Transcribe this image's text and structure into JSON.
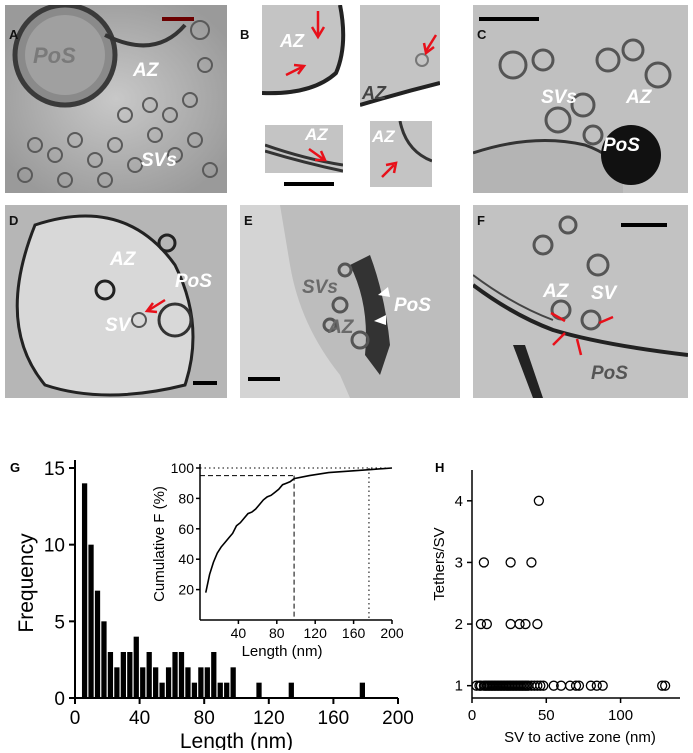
{
  "panels": {
    "A": {
      "letter": "A",
      "labels": {
        "pos": "PoS",
        "az": "AZ",
        "svs": "SVs"
      }
    },
    "B": {
      "letter": "B",
      "labels": {
        "az1": "AZ",
        "az2": "AZ",
        "az3": "AZ",
        "az4": "AZ"
      }
    },
    "C": {
      "letter": "C",
      "labels": {
        "svs": "SVs",
        "az": "AZ",
        "pos": "PoS"
      }
    },
    "D": {
      "letter": "D",
      "labels": {
        "az": "AZ",
        "pos": "PoS",
        "sv": "SV"
      }
    },
    "E": {
      "letter": "E",
      "labels": {
        "svs": "SVs",
        "az": "AZ",
        "pos": "PoS"
      }
    },
    "F": {
      "letter": "F",
      "labels": {
        "az": "AZ",
        "sv": "SV",
        "pos": "PoS"
      }
    },
    "G": {
      "letter": "G"
    },
    "H": {
      "letter": "H"
    }
  },
  "colors": {
    "arrow": "#e8101a",
    "arrowhead_white": "#ffffff",
    "scalebar_red": "#6b0000"
  },
  "chart_data": [
    {
      "id": "G-main",
      "type": "bar",
      "xlabel": "Length (nm)",
      "ylabel": "Frequency",
      "xlim": [
        0,
        200
      ],
      "ylim": [
        0,
        15
      ],
      "xticks": [
        0,
        40,
        80,
        120,
        160,
        200
      ],
      "yticks": [
        0,
        5,
        10,
        15
      ],
      "bin_width": 4,
      "bin_centers": [
        6,
        10,
        14,
        18,
        22,
        26,
        30,
        34,
        38,
        42,
        46,
        50,
        54,
        58,
        62,
        66,
        70,
        74,
        78,
        82,
        86,
        90,
        94,
        98,
        114,
        134,
        178
      ],
      "values": [
        14,
        10,
        7,
        5,
        3,
        2,
        3,
        3,
        4,
        2,
        3,
        2,
        1,
        2,
        3,
        3,
        2,
        1,
        2,
        2,
        3,
        1,
        1,
        2,
        1,
        1,
        1
      ]
    },
    {
      "id": "G-inset",
      "type": "line",
      "xlabel": "Length (nm)",
      "ylabel": "Cumulative F (%)",
      "xlim": [
        0,
        200
      ],
      "ylim": [
        0,
        100
      ],
      "xticks": [
        40,
        80,
        120,
        160,
        200
      ],
      "yticks": [
        20,
        40,
        60,
        80,
        100
      ],
      "x": [
        6,
        10,
        14,
        18,
        22,
        26,
        30,
        34,
        38,
        42,
        46,
        50,
        54,
        58,
        62,
        66,
        70,
        74,
        78,
        82,
        86,
        90,
        94,
        98,
        114,
        134,
        178,
        200
      ],
      "y": [
        18,
        30,
        38,
        44,
        48,
        51,
        54,
        57,
        62,
        64,
        67,
        70,
        71,
        73,
        76,
        79,
        81,
        82,
        84,
        86,
        89,
        90,
        91,
        93,
        95,
        97,
        99,
        100
      ],
      "ref_lines": {
        "horizontal": [
          95,
          100
        ],
        "vertical": [
          98,
          176
        ]
      }
    },
    {
      "id": "H",
      "type": "scatter",
      "xlabel": "SV to active zone (nm)",
      "ylabel": "Tethers/SV",
      "xlim": [
        0,
        140
      ],
      "ylim": [
        0.8,
        4.5
      ],
      "xticks": [
        0,
        50,
        100
      ],
      "yticks": [
        1,
        2,
        3,
        4
      ],
      "x": [
        3,
        5,
        6,
        8,
        9,
        10,
        11,
        12,
        13,
        14,
        15,
        16,
        17,
        18,
        19,
        20,
        21,
        22,
        23,
        24,
        25,
        26,
        27,
        28,
        29,
        30,
        31,
        32,
        33,
        34,
        35,
        36,
        37,
        38,
        40,
        42,
        44,
        46,
        48,
        55,
        60,
        66,
        70,
        72,
        80,
        84,
        88,
        128,
        130,
        6,
        10,
        26,
        32,
        36,
        44,
        8,
        26,
        40,
        45
      ],
      "y": [
        1,
        1,
        1,
        1,
        1,
        1,
        1,
        1,
        1,
        1,
        1,
        1,
        1,
        1,
        1,
        1,
        1,
        1,
        1,
        1,
        1,
        1,
        1,
        1,
        1,
        1,
        1,
        1,
        1,
        1,
        1,
        1,
        1,
        1,
        1,
        1,
        1,
        1,
        1,
        1,
        1,
        1,
        1,
        1,
        1,
        1,
        1,
        1,
        1,
        2,
        2,
        2,
        2,
        2,
        2,
        3,
        3,
        3,
        4
      ]
    }
  ]
}
